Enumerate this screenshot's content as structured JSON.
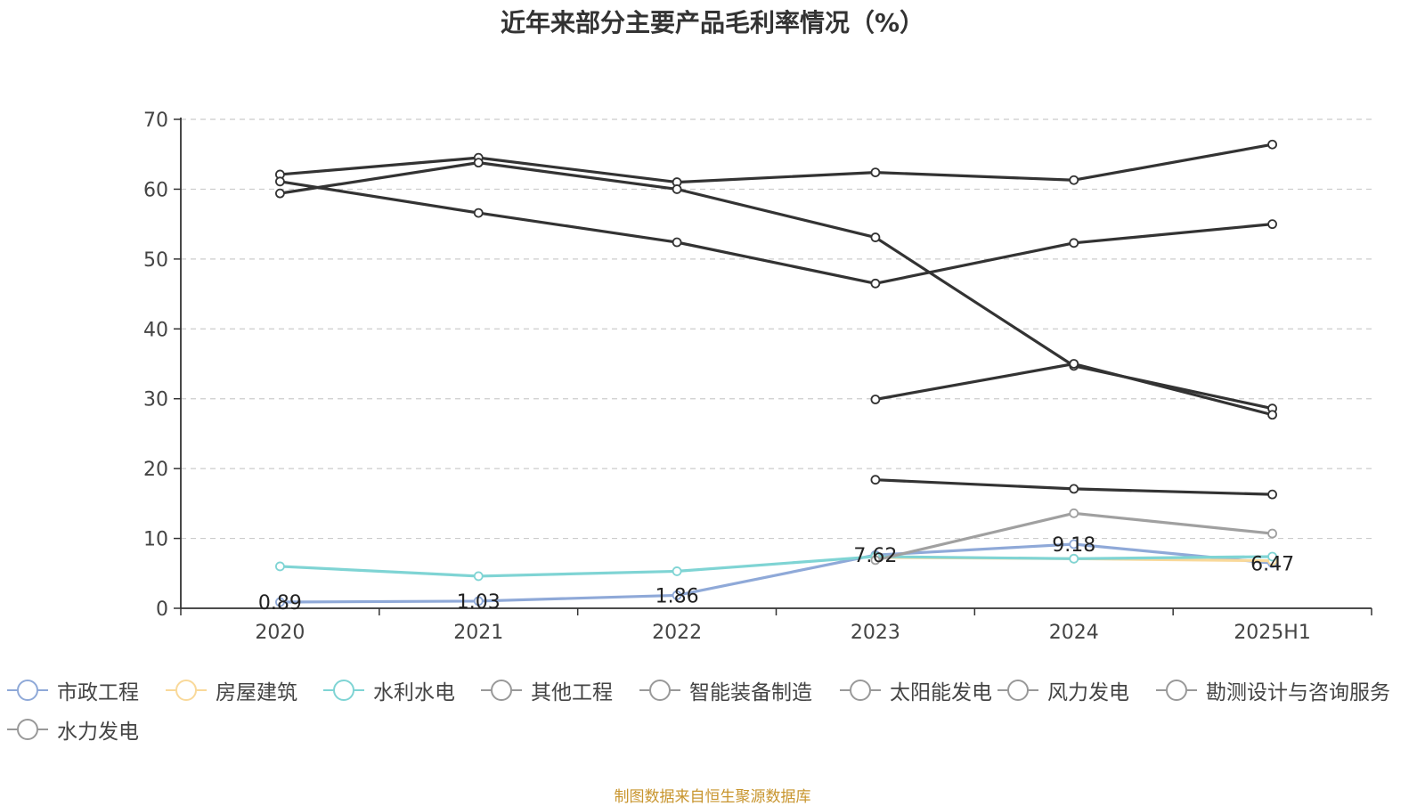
{
  "chart_data": {
    "type": "line",
    "title": "近年来部分主要产品毛利率情况（%）",
    "categories": [
      "2020",
      "2021",
      "2022",
      "2023",
      "2024",
      "2025H1"
    ],
    "ylim": [
      0,
      70
    ],
    "yticks": [
      "0",
      "10",
      "20",
      "30",
      "40",
      "50",
      "60",
      "70"
    ],
    "grid": true,
    "legend_position": "bottom",
    "series": [
      {
        "name": "市政工程",
        "color": "#8fa9d8",
        "values": [
          0.89,
          1.03,
          1.86,
          7.62,
          9.18,
          6.47
        ],
        "labels": [
          "0.89",
          "1.03",
          "1.86",
          "7.62",
          "9.18",
          "6.47"
        ]
      },
      {
        "name": "房屋建筑",
        "color": "#f9d99a",
        "values": [
          null,
          null,
          null,
          7.3,
          7.1,
          6.8
        ]
      },
      {
        "name": "水利水电",
        "color": "#7fd4d4",
        "values": [
          6.0,
          4.6,
          5.3,
          7.4,
          7.1,
          7.4
        ]
      },
      {
        "name": "其他工程",
        "color": "#333333",
        "values": [
          62.1,
          64.5,
          61.0,
          62.4,
          61.3,
          66.4
        ]
      },
      {
        "name": "智能装备制造",
        "color": "#333333",
        "values": [
          59.4,
          63.8,
          60.0,
          53.1,
          34.7,
          28.6
        ]
      },
      {
        "name": "太阳能发电",
        "color": "#333333",
        "values": [
          61.1,
          56.6,
          52.4,
          46.5,
          52.3,
          55.0
        ]
      },
      {
        "name": "风力发电",
        "color": "#333333",
        "values": [
          null,
          null,
          null,
          29.9,
          35.0,
          27.7
        ]
      },
      {
        "name": "勘测设计与咨询服务",
        "color": "#333333",
        "values": [
          null,
          null,
          null,
          18.4,
          17.1,
          16.3
        ]
      },
      {
        "name": "水力发电",
        "color": "#a0a0a0",
        "values": [
          null,
          null,
          null,
          6.9,
          13.6,
          10.7
        ]
      }
    ]
  },
  "legend_items": [
    "市政工程",
    "房屋建筑",
    "水利水电",
    "其他工程",
    "智能装备制造",
    "太阳能发电",
    "风力发电",
    "勘测设计与咨询服务",
    "水力发电"
  ],
  "legend_marker_color": "#999999",
  "source_note": "制图数据来自恒生聚源数据库"
}
